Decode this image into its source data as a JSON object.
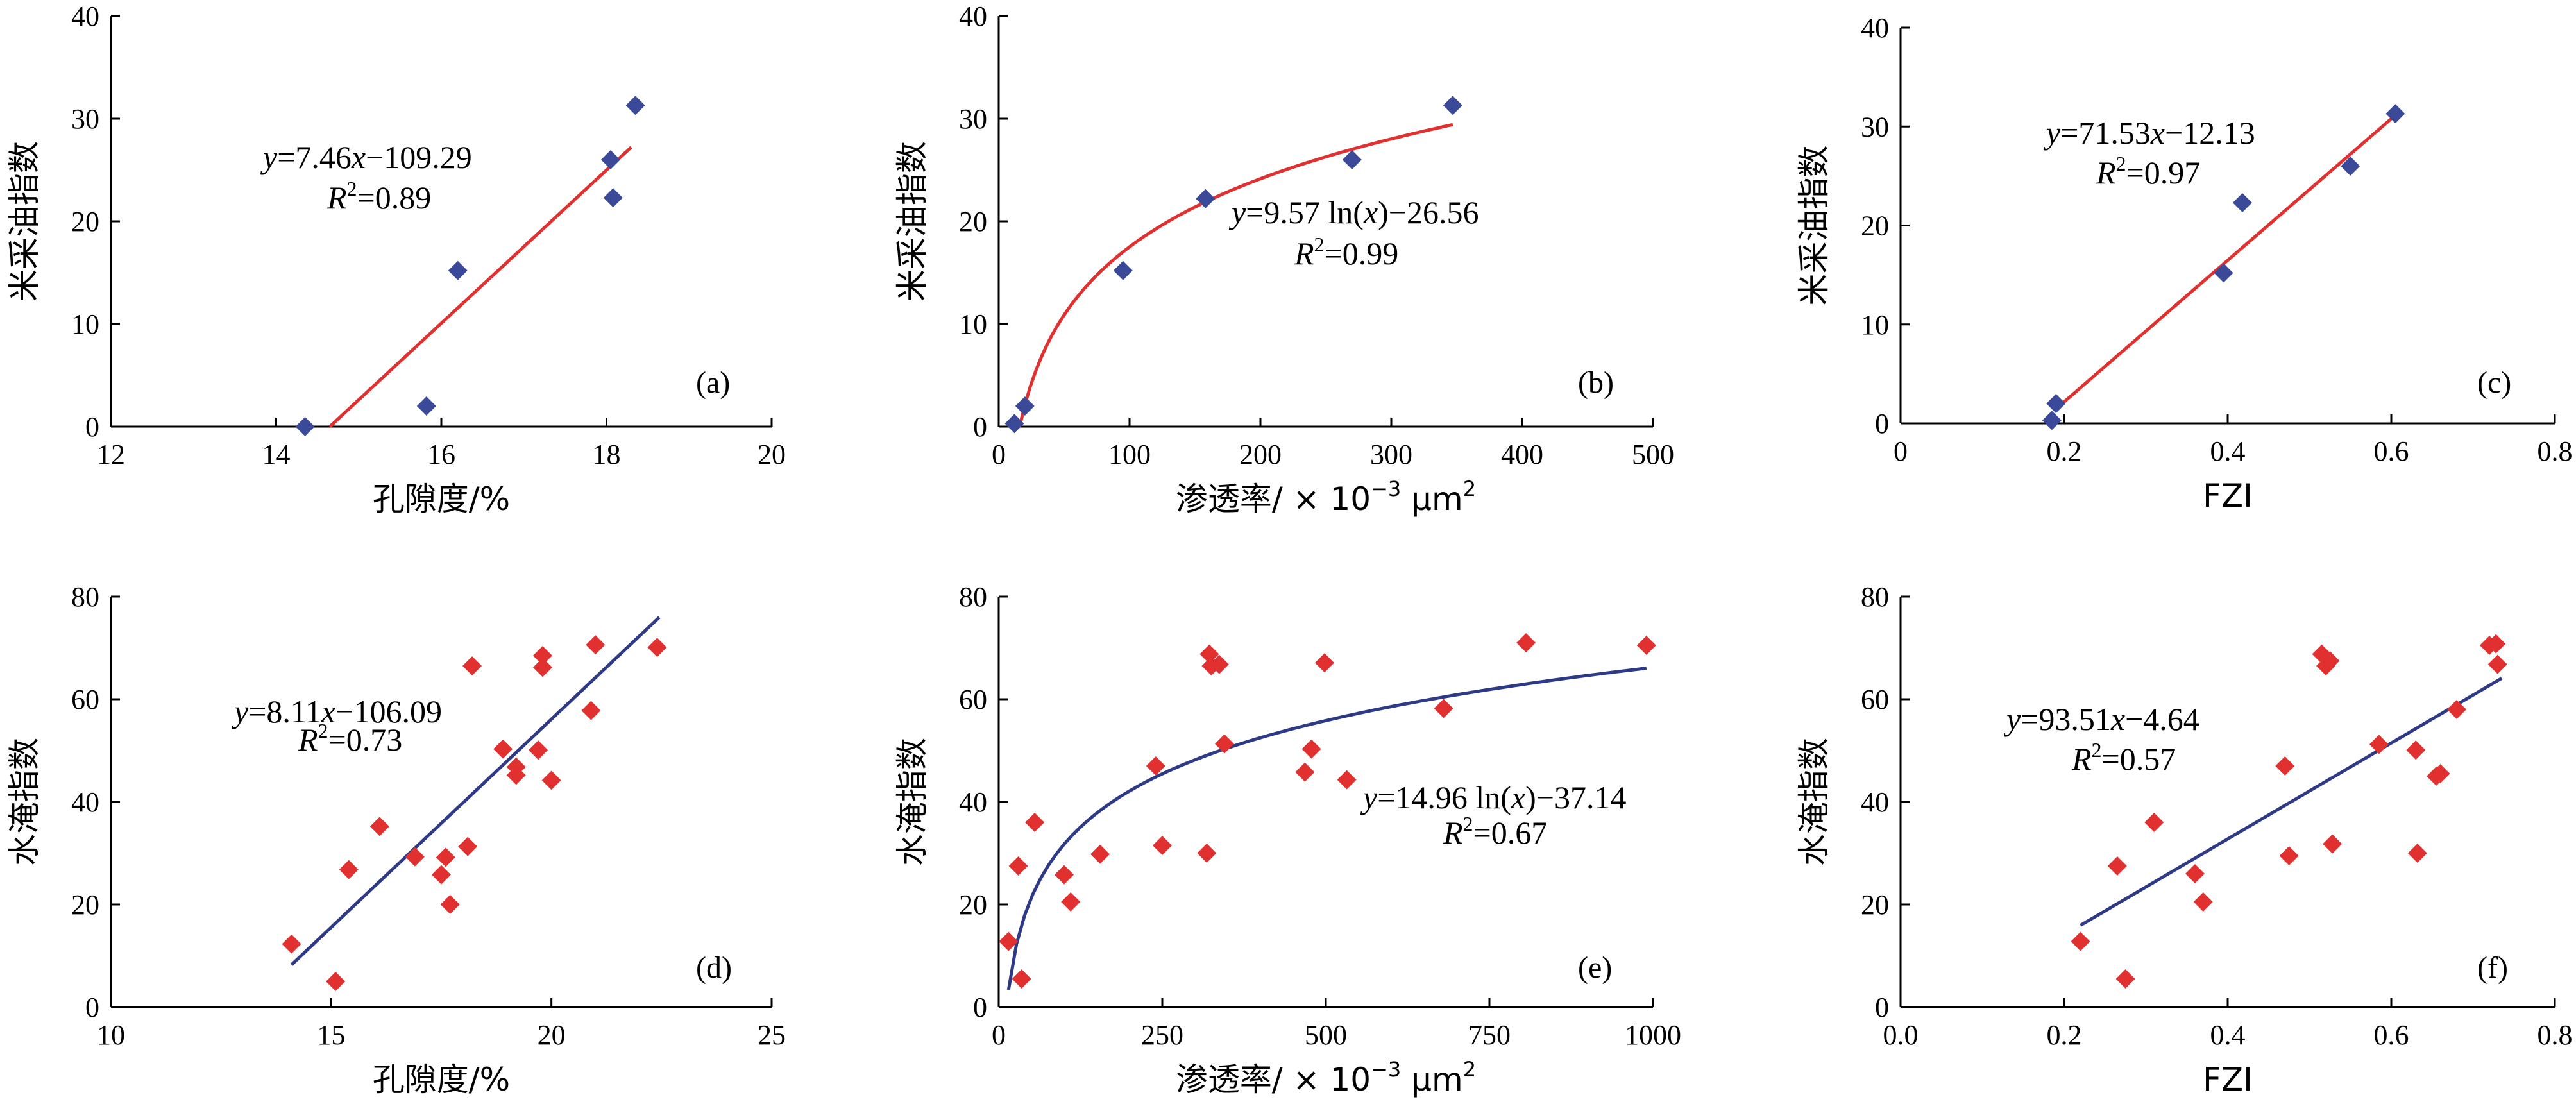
{
  "chart_data": [
    {
      "id": "a",
      "type": "scatter",
      "panel_label": "(a)",
      "xlabel": "孔隙度/%",
      "ylabel": "米采油指数",
      "xlim": [
        12,
        20
      ],
      "ylim": [
        0,
        40
      ],
      "xticks": [
        12,
        14,
        16,
        18,
        20
      ],
      "yticks": [
        0,
        10,
        20,
        30,
        40
      ],
      "xtick_labels": [
        "12",
        "14",
        "16",
        "18",
        "20"
      ],
      "ytick_labels": [
        "0",
        "10",
        "20",
        "30",
        "40"
      ],
      "marker_color": "#3A4A99",
      "line_color": "#E03030",
      "points": [
        [
          14.35,
          0
        ],
        [
          15.82,
          2
        ],
        [
          16.2,
          15.2
        ],
        [
          18.05,
          26
        ],
        [
          18.08,
          22.3
        ],
        [
          18.35,
          31.3
        ]
      ],
      "fit": {
        "model": "linear",
        "a": 7.46,
        "b": -109.29,
        "x_range": [
          14.65,
          18.3
        ]
      },
      "equation": {
        "y": "y",
        "eq_sign": "=7.46",
        "x": "x",
        "rest": "−109.29"
      },
      "r2": {
        "r": "R",
        "sup": "2",
        "rest": "=0.89"
      }
    },
    {
      "id": "b",
      "type": "scatter",
      "panel_label": "(b)",
      "xlabel": "渗透率/ × 10",
      "xlabel_sup": "−3",
      "xlabel_unit": " μm",
      "xlabel_unit_sup": "2",
      "ylabel": "米采油指数",
      "xlim": [
        0,
        500
      ],
      "ylim": [
        0,
        40
      ],
      "xticks": [
        0,
        100,
        200,
        300,
        400,
        500
      ],
      "yticks": [
        0,
        10,
        20,
        30,
        40
      ],
      "xtick_labels": [
        "0",
        "100",
        "200",
        "300",
        "400",
        "500"
      ],
      "ytick_labels": [
        "0",
        "10",
        "20",
        "30",
        "40"
      ],
      "marker_color": "#3A4A99",
      "line_color": "#E03030",
      "points": [
        [
          12,
          0.3
        ],
        [
          20,
          2
        ],
        [
          95,
          15.2
        ],
        [
          158,
          22.2
        ],
        [
          270,
          26
        ],
        [
          347,
          31.3
        ]
      ],
      "fit": {
        "model": "log",
        "a": 9.57,
        "b": -26.56,
        "x_range": [
          16,
          347
        ]
      },
      "equation": {
        "y": "y",
        "eq_sign": "=9.57 ln(",
        "x": "x",
        "rest": ")−26.56"
      },
      "r2": {
        "r": "R",
        "sup": "2",
        "rest": "=0.99"
      }
    },
    {
      "id": "c",
      "type": "scatter",
      "panel_label": "(c)",
      "xlabel": "FZI",
      "ylabel": "米采油指数",
      "xlim": [
        0,
        0.8
      ],
      "ylim": [
        0,
        40
      ],
      "xticks": [
        0,
        0.2,
        0.4,
        0.6,
        0.8
      ],
      "yticks": [
        0,
        10,
        20,
        30,
        40
      ],
      "xtick_labels": [
        "0",
        "0.2",
        "0.4",
        "0.6",
        "0.8"
      ],
      "ytick_labels": [
        "0",
        "10",
        "20",
        "30",
        "40"
      ],
      "marker_color": "#3A4A99",
      "line_color": "#E03030",
      "points": [
        [
          0.185,
          0.3
        ],
        [
          0.19,
          2
        ],
        [
          0.395,
          15.2
        ],
        [
          0.418,
          22.3
        ],
        [
          0.55,
          26
        ],
        [
          0.605,
          31.3
        ]
      ],
      "fit": {
        "model": "linear",
        "a": 71.53,
        "b": -12.13,
        "x_range": [
          0.195,
          0.61
        ]
      },
      "equation": {
        "y": "y",
        "eq_sign": "=71.53",
        "x": "x",
        "rest": "−12.13"
      },
      "r2": {
        "r": "R",
        "sup": "2",
        "rest": "=0.97"
      }
    },
    {
      "id": "d",
      "type": "scatter",
      "panel_label": "(d)",
      "xlabel": "孔隙度/%",
      "ylabel": "水淹指数",
      "xlim": [
        10,
        25
      ],
      "ylim": [
        0,
        80
      ],
      "xticks": [
        10,
        15,
        20,
        25
      ],
      "yticks": [
        0,
        20,
        40,
        60,
        80
      ],
      "xtick_labels": [
        "10",
        "15",
        "20",
        "25"
      ],
      "ytick_labels": [
        "0",
        "20",
        "40",
        "60",
        "80"
      ],
      "marker_color": "#E03030",
      "line_color": "#2E3A86",
      "points": [
        [
          14.1,
          12.3
        ],
        [
          15.1,
          5
        ],
        [
          15.4,
          26.8
        ],
        [
          16.1,
          35.2
        ],
        [
          16.9,
          29.3
        ],
        [
          17.5,
          25.8
        ],
        [
          17.6,
          29.2
        ],
        [
          17.7,
          20
        ],
        [
          18.1,
          31.3
        ],
        [
          18.2,
          66.5
        ],
        [
          18.9,
          50.3
        ],
        [
          19.2,
          45.2
        ],
        [
          19.2,
          46.8
        ],
        [
          19.7,
          50.1
        ],
        [
          19.8,
          68.5
        ],
        [
          19.8,
          66.2
        ],
        [
          20.0,
          44.2
        ],
        [
          20.9,
          57.8
        ],
        [
          21.0,
          70.6
        ],
        [
          22.4,
          70.1
        ]
      ],
      "fit": {
        "model": "linear",
        "a": 8.11,
        "b": -106.09,
        "x_range": [
          14.1,
          22.45
        ]
      },
      "equation": {
        "y": "y",
        "eq_sign": "=8.11",
        "x": "x",
        "rest": "−106.09"
      },
      "r2": {
        "r": "R",
        "sup": "2",
        "rest": "=0.73"
      }
    },
    {
      "id": "e",
      "type": "scatter",
      "panel_label": "(e)",
      "xlabel": "渗透率/ × 10",
      "xlabel_sup": "−3",
      "xlabel_unit": " μm",
      "xlabel_unit_sup": "2",
      "ylabel": "水淹指数",
      "xlim": [
        0,
        1000
      ],
      "ylim": [
        0,
        80
      ],
      "xticks": [
        0,
        250,
        500,
        750,
        1000
      ],
      "yticks": [
        0,
        20,
        40,
        60,
        80
      ],
      "xtick_labels": [
        "0",
        "250",
        "500",
        "750",
        "1000"
      ],
      "ytick_labels": [
        "0",
        "20",
        "40",
        "60",
        "80"
      ],
      "marker_color": "#E03030",
      "line_color": "#2E3A86",
      "points": [
        [
          15,
          12.8
        ],
        [
          30,
          27.5
        ],
        [
          35,
          5.5
        ],
        [
          55,
          36
        ],
        [
          100,
          25.8
        ],
        [
          110,
          20.5
        ],
        [
          155,
          29.8
        ],
        [
          240,
          47
        ],
        [
          250,
          31.5
        ],
        [
          318,
          30
        ],
        [
          322,
          68.8
        ],
        [
          325,
          66.5
        ],
        [
          337,
          66.8
        ],
        [
          345,
          51.3
        ],
        [
          468,
          45.8
        ],
        [
          478,
          50.3
        ],
        [
          498,
          67.1
        ],
        [
          532,
          44.3
        ],
        [
          680,
          58.2
        ],
        [
          806,
          71
        ],
        [
          990,
          70.5
        ]
      ],
      "fit": {
        "model": "log",
        "a": 14.96,
        "b": -37.14,
        "x_range": [
          15,
          990
        ]
      },
      "equation": {
        "y": "y",
        "eq_sign": "=14.96 ln(",
        "x": "x",
        "rest": ")−37.14"
      },
      "r2": {
        "r": "R",
        "sup": "2",
        "rest": "=0.67"
      }
    },
    {
      "id": "f",
      "type": "scatter",
      "panel_label": "(f)",
      "xlabel": "FZI",
      "ylabel": "水淹指数",
      "xlim": [
        0,
        0.8
      ],
      "ylim": [
        0,
        80
      ],
      "xticks": [
        0,
        0.2,
        0.4,
        0.6,
        0.8
      ],
      "yticks": [
        0,
        20,
        40,
        60,
        80
      ],
      "xtick_labels": [
        "0.0",
        "0.2",
        "0.4",
        "0.6",
        "0.8"
      ],
      "ytick_labels": [
        "0",
        "20",
        "40",
        "60",
        "80"
      ],
      "marker_color": "#E03030",
      "line_color": "#2E3A86",
      "points": [
        [
          0.22,
          12.8
        ],
        [
          0.265,
          27.5
        ],
        [
          0.275,
          5.5
        ],
        [
          0.31,
          36
        ],
        [
          0.36,
          26
        ],
        [
          0.37,
          20.5
        ],
        [
          0.47,
          47
        ],
        [
          0.475,
          29.5
        ],
        [
          0.515,
          68.8
        ],
        [
          0.52,
          66.5
        ],
        [
          0.525,
          67.5
        ],
        [
          0.528,
          31.8
        ],
        [
          0.585,
          51.2
        ],
        [
          0.63,
          50.1
        ],
        [
          0.632,
          30
        ],
        [
          0.655,
          45
        ],
        [
          0.66,
          45.5
        ],
        [
          0.68,
          58
        ],
        [
          0.72,
          70.5
        ],
        [
          0.728,
          70.8
        ],
        [
          0.73,
          66.8
        ]
      ],
      "fit": {
        "model": "linear",
        "a": 93.51,
        "b": -4.64,
        "x_range": [
          0.22,
          0.735
        ]
      },
      "equation": {
        "y": "y",
        "eq_sign": "=93.51",
        "x": "x",
        "rest": "−4.64"
      },
      "r2": {
        "r": "R",
        "sup": "2",
        "rest": "=0.57"
      }
    }
  ]
}
